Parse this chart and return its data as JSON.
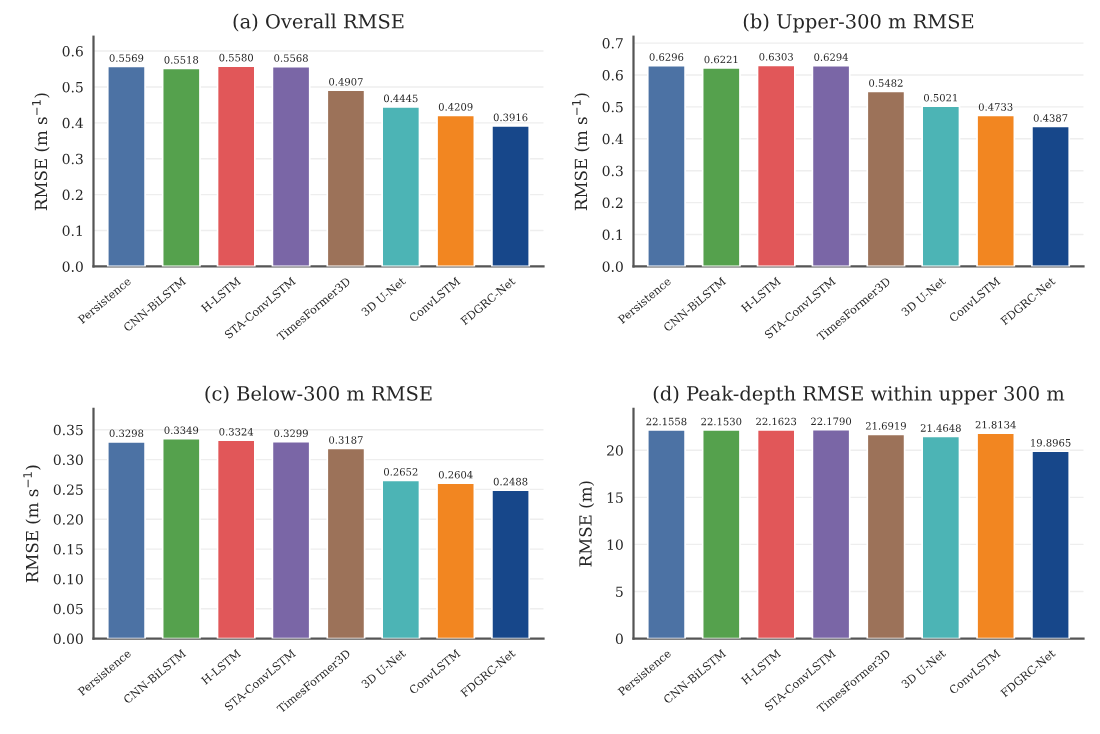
{
  "chart_data": [
    {
      "type": "bar",
      "title": "(a) Overall RMSE",
      "ylabel": "RMSE (m s$^{−1}$)",
      "categories": [
        "Persistence",
        "CNN-BiLSTM",
        "H-LSTM",
        "STA-ConvLSTM",
        "TimesFormer3D",
        "3D U-Net",
        "ConvLSTM",
        "FDGRC-Net"
      ],
      "values": [
        0.5569,
        0.5518,
        0.558,
        0.5568,
        0.4907,
        0.4445,
        0.4209,
        0.3916
      ],
      "value_labels": [
        "0.5569",
        "0.5518",
        "0.5580",
        "0.5568",
        "0.4907",
        "0.4445",
        "0.4209",
        "0.3916"
      ],
      "colors": [
        "#4c72a4",
        "#55a14d",
        "#e15759",
        "#7a66a6",
        "#9c7259",
        "#4cb4b5",
        "#f28621",
        "#17478a"
      ],
      "ylim": [
        0,
        0.64
      ],
      "yticks": [
        {
          "value": 0,
          "label": "0.0"
        },
        0.1,
        0.2,
        0.3,
        0.4,
        0.5,
        0.6
      ],
      "grid": "y"
    },
    {
      "type": "bar",
      "title": "(b) Upper-300 m RMSE",
      "ylabel": "RMSE (m s$^{−1}$)",
      "categories": [
        "Persistence",
        "CNN-BiLSTM",
        "H-LSTM",
        "STA-ConvLSTM",
        "TimesFormer3D",
        "3D U-Net",
        "ConvLSTM",
        "FDGRC-Net"
      ],
      "values": [
        0.6296,
        0.6221,
        0.6303,
        0.6294,
        0.5482,
        0.5021,
        0.4733,
        0.4387
      ],
      "value_labels": [
        "0.6296",
        "0.6221",
        "0.6303",
        "0.6294",
        "0.5482",
        "0.5021",
        "0.4733",
        "0.4387"
      ],
      "colors": [
        "#4c72a4",
        "#55a14d",
        "#e15759",
        "#7a66a6",
        "#9c7259",
        "#4cb4b5",
        "#f28621",
        "#17478a"
      ],
      "ylim": [
        0,
        0.72
      ],
      "yticks": [
        {
          "value": 0,
          "label": "0.0"
        },
        0.1,
        0.2,
        0.3,
        0.4,
        0.5,
        0.6,
        0.7
      ],
      "grid": "y"
    },
    {
      "type": "bar",
      "title": "(c) Below-300 m RMSE",
      "ylabel": "RMSE (m s$^{−1}$)",
      "categories": [
        "Persistence",
        "CNN-BiLSTM",
        "H-LSTM",
        "STA-ConvLSTM",
        "TimesFormer3D",
        "3D U-Net",
        "ConvLSTM",
        "FDGRC-Net"
      ],
      "values": [
        0.3298,
        0.3349,
        0.3324,
        0.3299,
        0.3187,
        0.2652,
        0.2604,
        0.2488
      ],
      "value_labels": [
        "0.3298",
        "0.3349",
        "0.3324",
        "0.3299",
        "0.3187",
        "0.2652",
        "0.2604",
        "0.2488"
      ],
      "colors": [
        "#4c72a4",
        "#55a14d",
        "#e15759",
        "#7a66a6",
        "#9c7259",
        "#4cb4b5",
        "#f28621",
        "#17478a"
      ],
      "ylim": [
        0,
        0.385
      ],
      "yticks": [
        {
          "value": 0,
          "label": "0.00"
        },
        {
          "value": 0.05,
          "label": "0.05"
        },
        {
          "value": 0.1,
          "label": "0.10"
        },
        {
          "value": 0.15,
          "label": "0.15"
        },
        {
          "value": 0.2,
          "label": "0.20"
        },
        {
          "value": 0.25,
          "label": "0.25"
        },
        {
          "value": 0.3,
          "label": "0.30"
        },
        {
          "value": 0.35,
          "label": "0.35"
        }
      ],
      "grid": "y"
    },
    {
      "type": "bar",
      "title": "(d) Peak-depth RMSE within upper 300 m",
      "ylabel": "RMSE (m)",
      "categories": [
        "Persistence",
        "CNN-BiLSTM",
        "H-LSTM",
        "STA-ConvLSTM",
        "TimesFormer3D",
        "3D U-Net",
        "ConvLSTM",
        "FDGRC-Net"
      ],
      "values": [
        22.1558,
        22.153,
        22.1623,
        22.179,
        21.6919,
        21.4648,
        21.8134,
        19.8965
      ],
      "value_labels": [
        "22.1558",
        "22.1530",
        "22.1623",
        "22.1790",
        "21.6919",
        "21.4648",
        "21.8134",
        "19.8965"
      ],
      "colors": [
        "#4c72a4",
        "#55a14d",
        "#e15759",
        "#7a66a6",
        "#9c7259",
        "#4cb4b5",
        "#f28621",
        "#17478a"
      ],
      "ylim": [
        0,
        24.4
      ],
      "yticks": [
        0,
        5,
        10,
        15,
        20
      ],
      "grid": "y"
    }
  ]
}
